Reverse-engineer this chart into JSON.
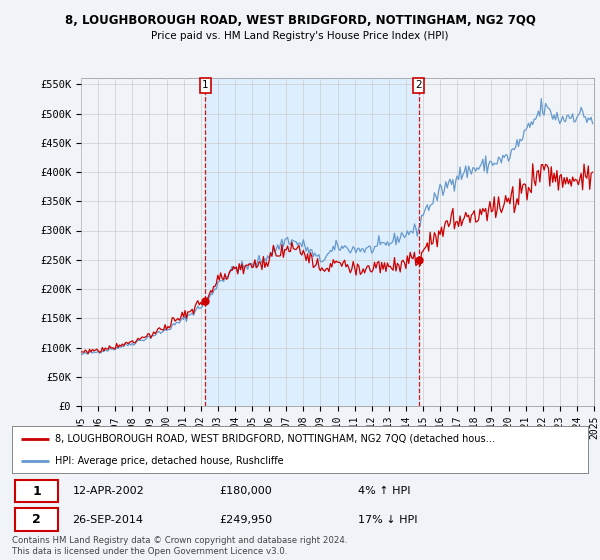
{
  "title": "8, LOUGHBOROUGH ROAD, WEST BRIDGFORD, NOTTINGHAM, NG2 7QQ",
  "subtitle": "Price paid vs. HM Land Registry's House Price Index (HPI)",
  "ylabel_ticks": [
    "£0",
    "£50K",
    "£100K",
    "£150K",
    "£200K",
    "£250K",
    "£300K",
    "£350K",
    "£400K",
    "£450K",
    "£500K",
    "£550K"
  ],
  "ylim": [
    0,
    560000
  ],
  "yticks": [
    0,
    50000,
    100000,
    150000,
    200000,
    250000,
    300000,
    350000,
    400000,
    450000,
    500000,
    550000
  ],
  "sale1_date": "12-APR-2002",
  "sale1_price": 180000,
  "sale1_label": "4% ↑ HPI",
  "sale1_x": 2002.28,
  "sale2_date": "26-SEP-2014",
  "sale2_price": 249950,
  "sale2_label": "17% ↓ HPI",
  "sale2_x": 2014.74,
  "legend_line1": "8, LOUGHBOROUGH ROAD, WEST BRIDGFORD, NOTTINGHAM, NG2 7QQ (detached hous…",
  "legend_line2": "HPI: Average price, detached house, Rushcliffe",
  "footer": "Contains HM Land Registry data © Crown copyright and database right 2024.\nThis data is licensed under the Open Government Licence v3.0.",
  "line_color_red": "#cc0000",
  "line_color_blue": "#6699cc",
  "shade_color": "#ddeeff",
  "background_color": "#f0f4f8",
  "plot_bg_color": "#f0f4f8",
  "grid_color": "#cccccc"
}
